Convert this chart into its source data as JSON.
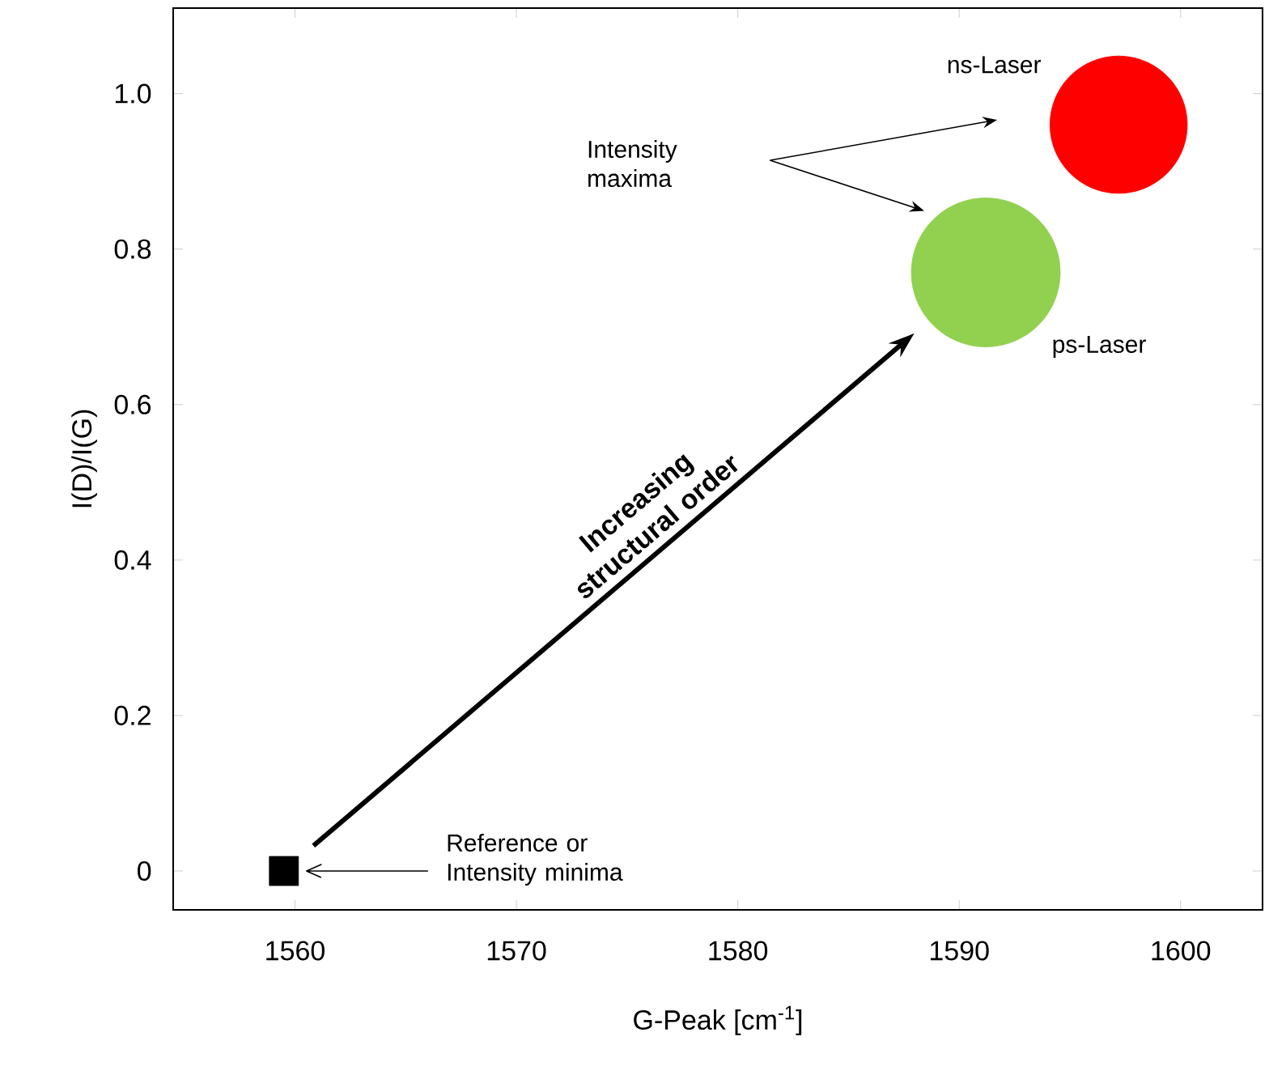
{
  "chart_data": {
    "type": "scatter",
    "xlabel": "G-Peak [cm$^{-1}$]",
    "ylabel": "I(D)/I(G)",
    "xlim": [
      1554.5,
      1603.7
    ],
    "ylim": [
      -0.05,
      1.11
    ],
    "xticks": [
      1560,
      1570,
      1580,
      1590,
      1600
    ],
    "yticks": [
      0,
      0.2,
      0.4,
      0.6,
      0.8,
      {
        "value": 1,
        "label": "1.0"
      }
    ],
    "series": [
      {
        "color": "#000000",
        "marker": "square",
        "x": [
          1559.5
        ],
        "values": [
          0
        ]
      },
      {
        "name": "ps-Laser",
        "type": "bubble",
        "color": "#92d050",
        "x": [
          1591.2
        ],
        "values": [
          0.77
        ],
        "sizes": [
          1
        ]
      },
      {
        "name": "ns-Laser",
        "type": "bubble",
        "color": "#ff0000",
        "x": [
          1597.2
        ],
        "values": [
          0.96
        ],
        "sizes": [
          0.85
        ]
      }
    ],
    "annotations": [
      "Reference or Intensity minima",
      "Intensity maxima",
      "Increasing structural order"
    ]
  }
}
